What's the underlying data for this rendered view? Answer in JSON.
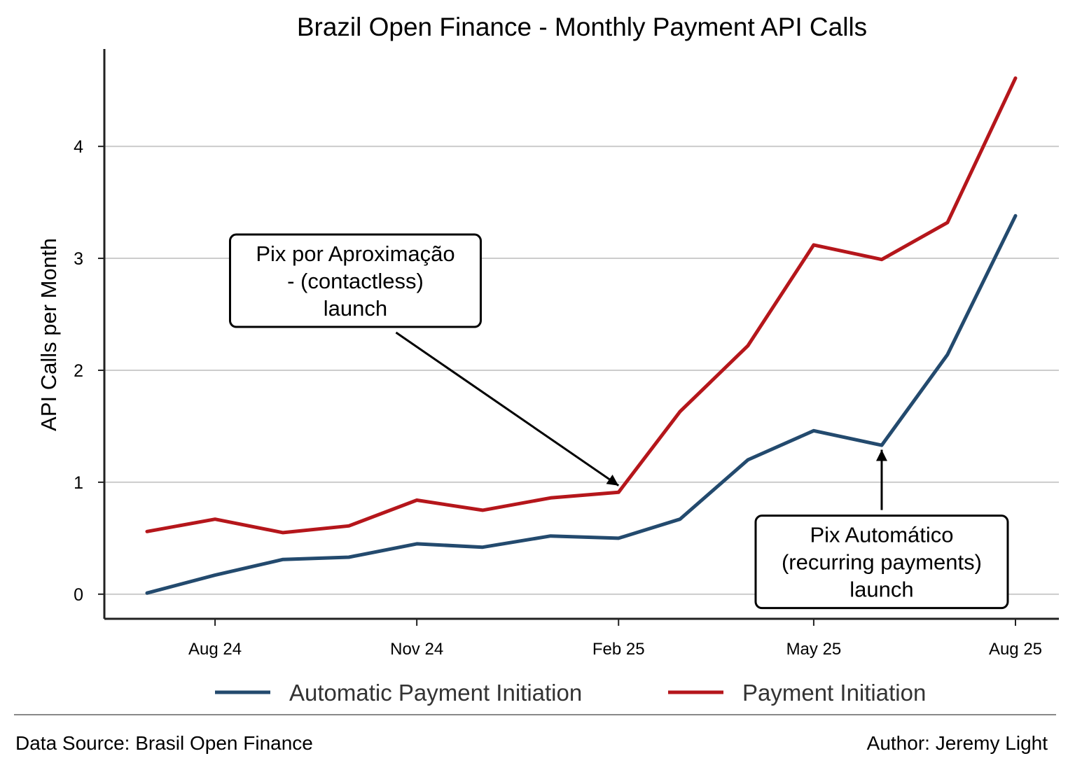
{
  "chart_data": {
    "type": "line",
    "title": "Brazil Open Finance - Monthly Payment API Calls",
    "xlabel": "",
    "ylabel": "API Calls per Month",
    "x": [
      "2024-07",
      "2024-08",
      "2024-09",
      "2024-10",
      "2024-11",
      "2024-12",
      "2025-01",
      "2025-02",
      "2025-03",
      "2025-04",
      "2025-05",
      "2025-06",
      "2025-07",
      "2025-08"
    ],
    "x_tick_labels": [
      {
        "x": "2024-08",
        "label": "Aug 24"
      },
      {
        "x": "2024-11",
        "label": "Nov 24"
      },
      {
        "x": "2025-02",
        "label": "Feb 25"
      },
      {
        "x": "2025-05",
        "label": "May 25"
      },
      {
        "x": "2025-08",
        "label": "Aug 25"
      }
    ],
    "y_ticks": [
      0,
      1,
      2,
      3,
      4
    ],
    "ylim": [
      -0.22,
      4.87
    ],
    "grid": "y-only",
    "series": [
      {
        "name": "Automatic Payment Initiation",
        "color": "#234a6e",
        "values": [
          0.01,
          0.17,
          0.31,
          0.33,
          0.45,
          0.42,
          0.52,
          0.5,
          0.67,
          1.2,
          1.46,
          1.33,
          2.14,
          3.38
        ]
      },
      {
        "name": "Payment Initiation",
        "color": "#b5161b",
        "values": [
          0.56,
          0.67,
          0.55,
          0.61,
          0.84,
          0.75,
          0.86,
          0.91,
          1.63,
          2.22,
          3.12,
          2.99,
          3.32,
          4.61
        ]
      }
    ],
    "annotations": [
      {
        "lines": [
          "Pix por Aproximação",
          "- (contactless)",
          "launch"
        ],
        "target_x": "2025-02",
        "target_y": 0.97,
        "text_anchor_x": "2024-10-04",
        "text_anchor_y": 2.7
      },
      {
        "lines": [
          "Pix Automático",
          "(recurring payments)",
          "launch"
        ],
        "target_x": "2025-06",
        "target_y": 1.29,
        "text_anchor_x": "2025-06",
        "text_anchor_y": 0.72
      }
    ],
    "legend": {
      "placement": "bottom-center",
      "orientation": "horizontal"
    }
  },
  "footer": {
    "source": "Data Source: Brasil Open Finance",
    "author": "Author: Jeremy Light"
  },
  "colors": {
    "axis": "#222222",
    "grid": "#cccccc",
    "annotation_border": "#000000",
    "footer_rule": "#888888"
  }
}
